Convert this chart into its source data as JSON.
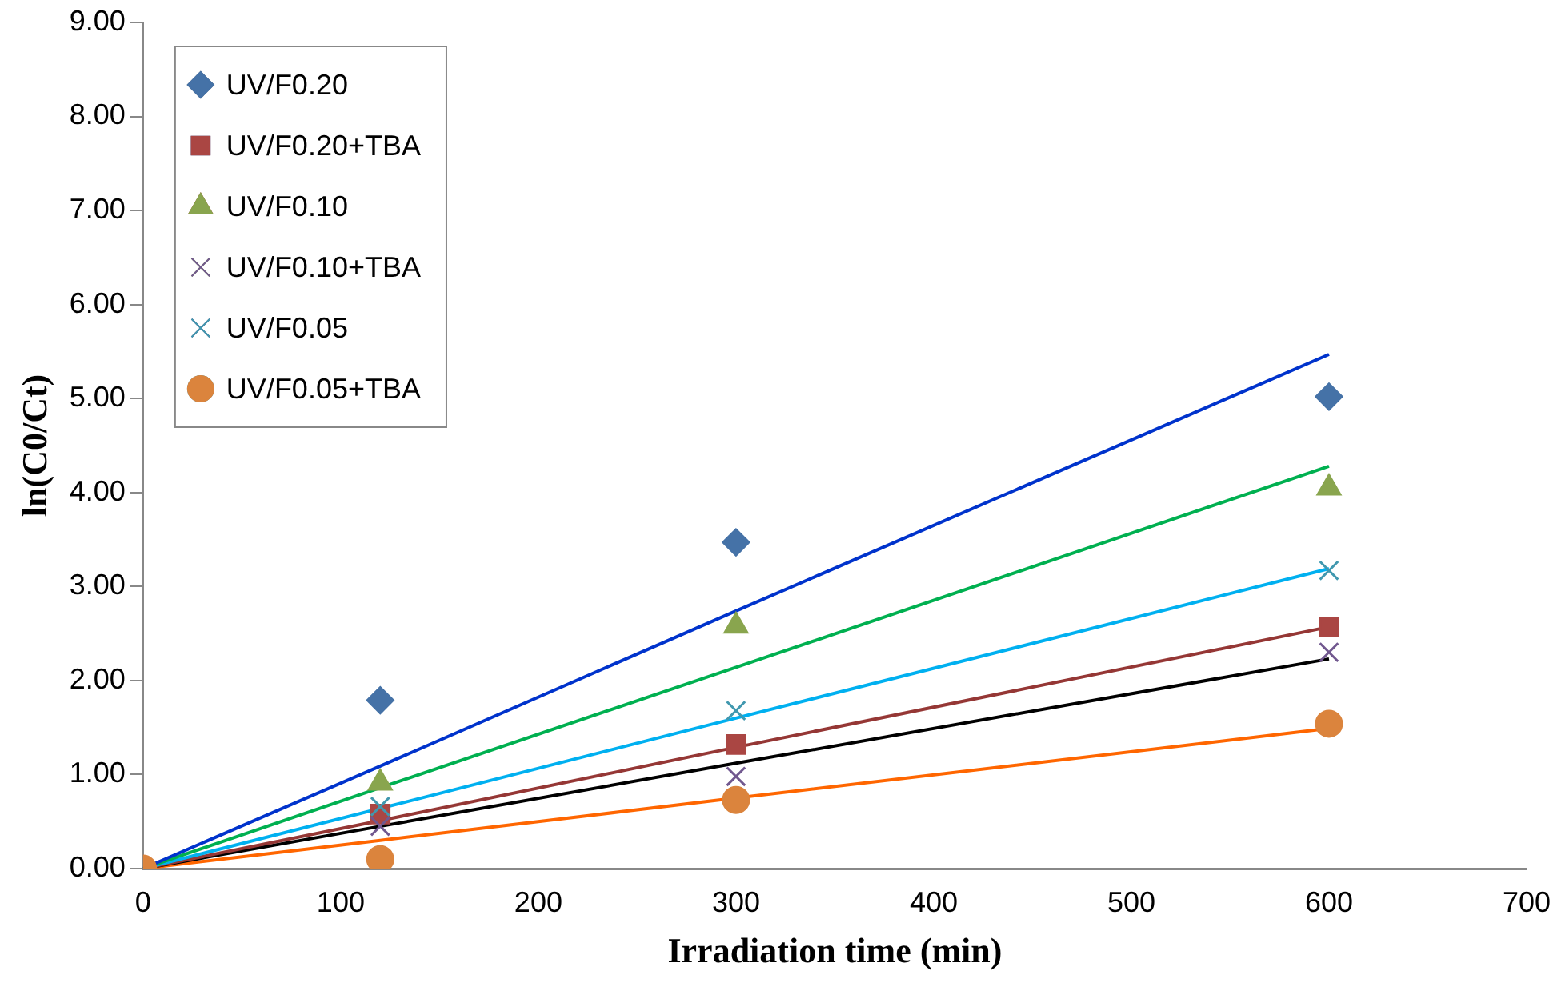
{
  "chart_data": {
    "type": "scatter",
    "xlabel": "Irradiation time (min)",
    "ylabel": "ln(C0/Ct)",
    "x": [
      0,
      120,
      300,
      600
    ],
    "xlim": [
      0,
      700
    ],
    "xticks": [
      0,
      100,
      200,
      300,
      400,
      500,
      600,
      700
    ],
    "ylim": [
      0,
      9
    ],
    "yticks": [
      {
        "value": 0,
        "label": "0.00"
      },
      {
        "value": 1,
        "label": "1.00"
      },
      {
        "value": 2,
        "label": "2.00"
      },
      {
        "value": 3,
        "label": "3.00"
      },
      {
        "value": 4,
        "label": "4.00"
      },
      {
        "value": 5,
        "label": "5.00"
      },
      {
        "value": 6,
        "label": "6.00"
      },
      {
        "value": 7,
        "label": "7.00"
      },
      {
        "value": 8,
        "label": "8.00"
      },
      {
        "value": 9,
        "label": "9.00"
      }
    ],
    "grid": false,
    "legend": "top left",
    "series": [
      {
        "name": "UV/F0.20",
        "color": "#4572a7",
        "marker": "diamond",
        "values": [
          null,
          1.79,
          3.47,
          5.02
        ]
      },
      {
        "name": "UV/F0.20+TBA",
        "color": "#aa4643",
        "marker": "square",
        "values": [
          null,
          0.58,
          1.32,
          2.57
        ]
      },
      {
        "name": "UV/F0.10",
        "color": "#89a54e",
        "marker": "triangle",
        "values": [
          null,
          0.91,
          2.58,
          4.05
        ]
      },
      {
        "name": "UV/F0.10+TBA",
        "color": "#71588f",
        "marker": "cross",
        "values": [
          null,
          0.45,
          0.98,
          2.3
        ]
      },
      {
        "name": "UV/F0.05",
        "color": "#4198af",
        "marker": "cross",
        "values": [
          null,
          0.66,
          1.68,
          3.17
        ]
      },
      {
        "name": "UV/F0.05+TBA",
        "color": "#db843d",
        "marker": "circle",
        "values": [
          0,
          0.1,
          0.73,
          1.54
        ]
      },
      {
        "type": "line",
        "color": "#0033cc",
        "values": [
          0,
          1.09,
          2.74,
          5.47
        ],
        "marker": "none"
      },
      {
        "type": "line",
        "color": "#00b050",
        "values": [
          0,
          0.86,
          2.14,
          4.28
        ],
        "marker": "none"
      },
      {
        "type": "line",
        "color": "#00b0f0",
        "values": [
          0,
          0.64,
          1.6,
          3.19
        ],
        "marker": "none"
      },
      {
        "type": "line",
        "color": "#953735",
        "values": [
          0,
          0.51,
          1.29,
          2.57
        ],
        "marker": "none"
      },
      {
        "type": "line",
        "color": "#000000",
        "values": [
          0,
          0.45,
          1.12,
          2.23
        ],
        "marker": "none"
      },
      {
        "type": "line",
        "color": "#ff6600",
        "values": [
          0,
          0.3,
          0.75,
          1.49
        ],
        "marker": "none"
      }
    ]
  }
}
